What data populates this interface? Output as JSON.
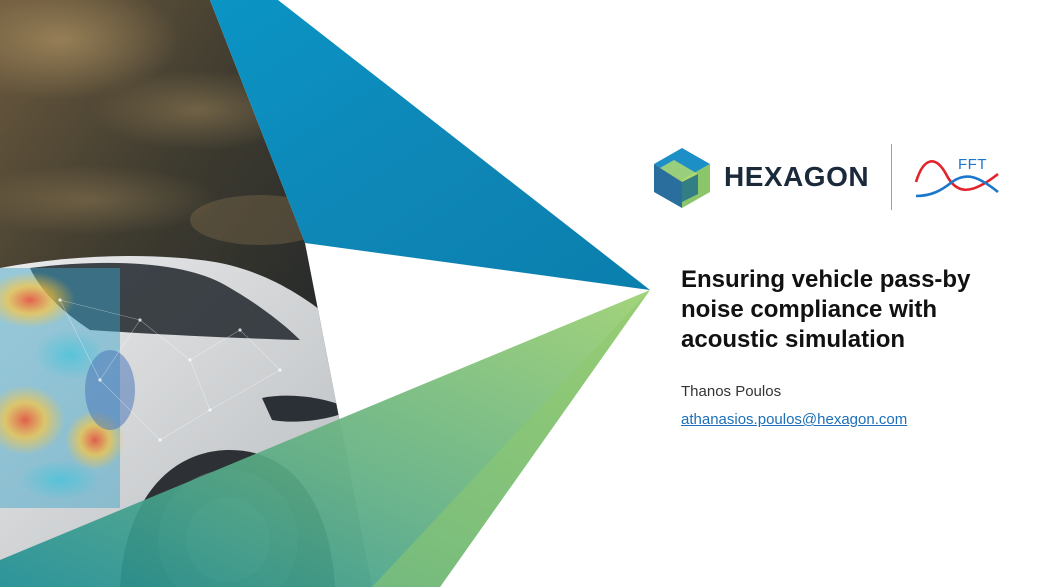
{
  "slide": {
    "title": "Ensuring vehicle pass-by noise compliance with acoustic simulation",
    "presenter": "Thanos Poulos",
    "email": "athanasios.poulos@hexagon.com"
  },
  "branding": {
    "company_logo_text": "HEXAGON",
    "partner_logo_text": "FFT"
  },
  "colors": {
    "hexagon_blue": "#0f8fc0",
    "hexagon_green": "#8cc66b",
    "title_text": "#111111",
    "link": "#1c6fb8",
    "fft_red": "#e2232a",
    "fft_blue": "#1b77c9"
  }
}
